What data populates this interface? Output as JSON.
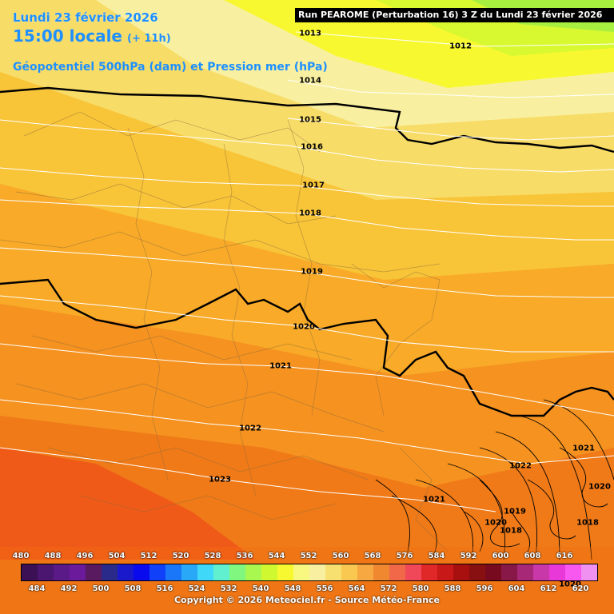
{
  "header": {
    "date": "Lundi 23 février 2026",
    "time": "15:00 locale",
    "lead": "(+ 11h)",
    "field": "Géopotentiel 500hPa (dam) et Pression mer (hPa)",
    "run": "Run PEAROME (Perturbation 16) 3 Z du Lundi 23 février 2026"
  },
  "isobars": [
    {
      "label": "1012"
    },
    {
      "label": "1013"
    },
    {
      "label": "1014"
    },
    {
      "label": "1015"
    },
    {
      "label": "1016"
    },
    {
      "label": "1017"
    },
    {
      "label": "1018"
    },
    {
      "label": "1019"
    },
    {
      "label": "1020"
    },
    {
      "label": "1021"
    },
    {
      "label": "1022"
    },
    {
      "label": "1023"
    },
    {
      "label": "1021"
    },
    {
      "label": "1022"
    },
    {
      "label": "1021"
    },
    {
      "label": "1020"
    },
    {
      "label": "1019"
    },
    {
      "label": "1020"
    },
    {
      "label": "1018"
    },
    {
      "label": "1018"
    },
    {
      "label": "1020"
    }
  ],
  "legend": {
    "top_labels": [
      "480",
      "488",
      "496",
      "504",
      "512",
      "520",
      "528",
      "536",
      "544",
      "552",
      "560",
      "568",
      "576",
      "584",
      "592",
      "600",
      "608",
      "616"
    ],
    "bottom_labels": [
      "484",
      "492",
      "500",
      "508",
      "516",
      "524",
      "532",
      "540",
      "548",
      "556",
      "564",
      "572",
      "580",
      "588",
      "596",
      "604",
      "612",
      "620"
    ],
    "colors": [
      "#3c1054",
      "#4a1670",
      "#5a1a88",
      "#6a1a9a",
      "#5a1a60",
      "#2a2a8a",
      "#1a1acc",
      "#0a0aee",
      "#1040f8",
      "#1a78f8",
      "#2aa8f8",
      "#40d8f8",
      "#60f0d0",
      "#80f880",
      "#a8f850",
      "#d0f830",
      "#f8f830",
      "#f8f880",
      "#f8f0a0",
      "#f8e070",
      "#f8c850",
      "#f8a840",
      "#f08830",
      "#f06848",
      "#f04858",
      "#e02828",
      "#c81818",
      "#a81010",
      "#881010",
      "#780a20",
      "#881848",
      "#a82878",
      "#c838a8",
      "#e838d8",
      "#f858f0",
      "#f090f0"
    ]
  },
  "copyright": "Copyright © 2026 Meteociel.fr - Source Météo-France"
}
